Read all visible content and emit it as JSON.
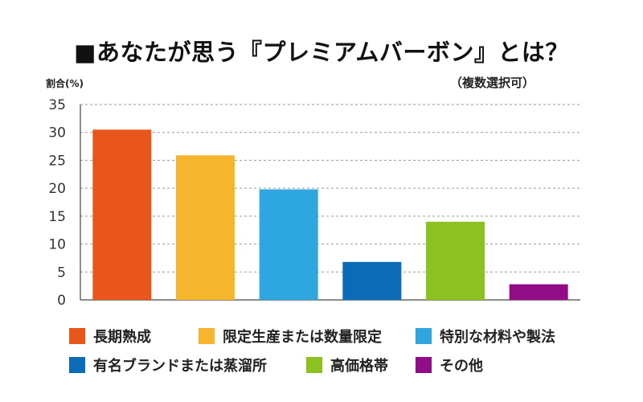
{
  "chart_data": {
    "type": "bar",
    "title": "■あなたが思う『プレミアムバーボン』とは？",
    "subtitle": "（複数選択可）",
    "ylabel": "割合(%)",
    "xlabel": "",
    "ylim": [
      0,
      35
    ],
    "yticks": [
      0,
      5,
      10,
      15,
      20,
      25,
      30,
      35
    ],
    "grid": true,
    "legend_position": "bottom",
    "categories": [
      "長期熟成",
      "限定生産または数量限定",
      "特別な材料や製法",
      "有名ブランドまたは蒸溜所",
      "高価格帯",
      "その他"
    ],
    "values": [
      30.5,
      25.9,
      19.8,
      6.8,
      14.0,
      2.8
    ],
    "colors": [
      "#E8561A",
      "#F7B52E",
      "#2EA7E0",
      "#0B6BB8",
      "#8BC220",
      "#920C88"
    ]
  }
}
